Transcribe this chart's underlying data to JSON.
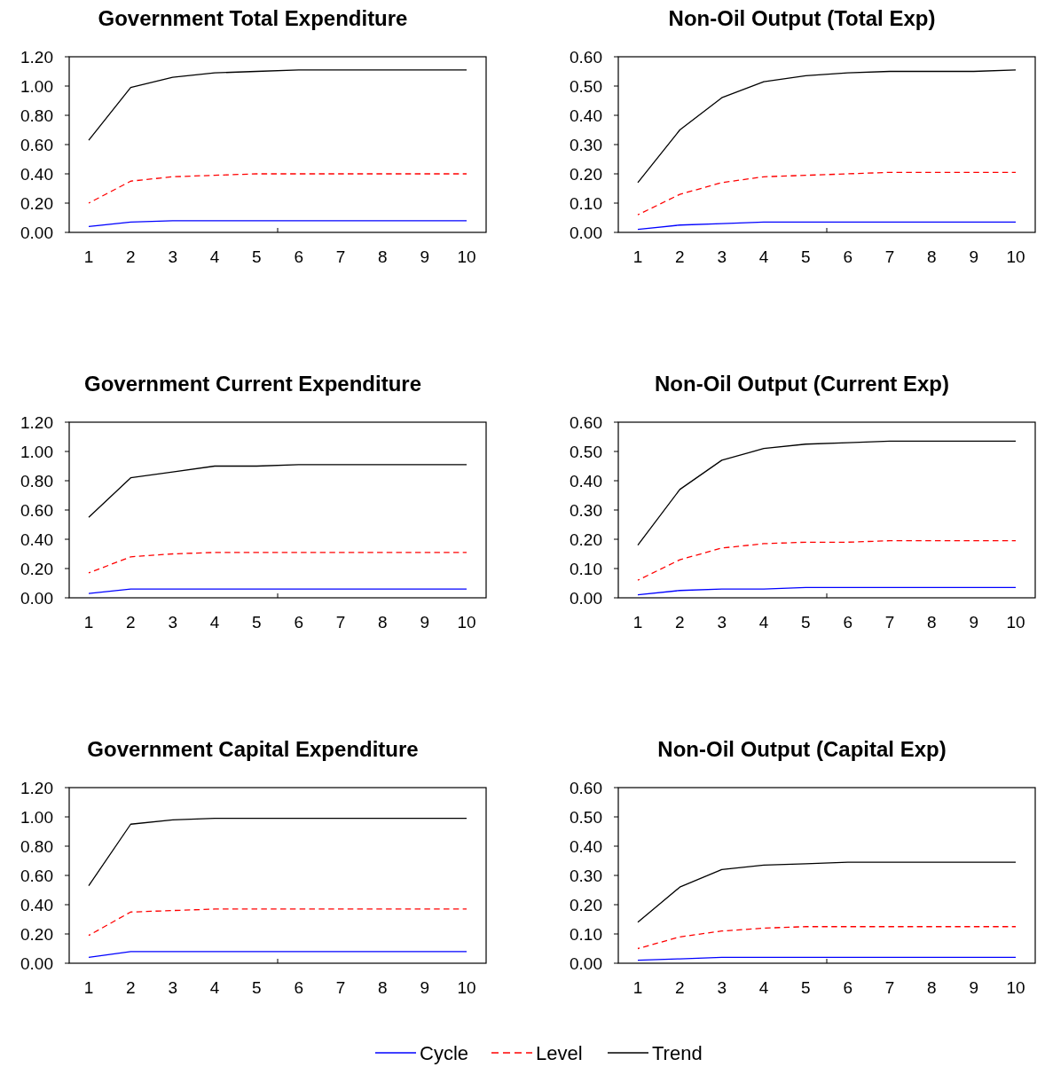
{
  "chart_data": [
    {
      "type": "line",
      "title": "Government Total Expenditure",
      "categories": [
        "1",
        "2",
        "3",
        "4",
        "5",
        "6",
        "7",
        "8",
        "9",
        "10"
      ],
      "ylim": [
        0,
        1.2
      ],
      "yticks": [
        {
          "value": 0,
          "label": "0.00"
        },
        {
          "value": 0.2,
          "label": "0.20"
        },
        {
          "value": 0.4,
          "label": "0.40"
        },
        {
          "value": 0.6,
          "label": "0.60"
        },
        {
          "value": 0.8,
          "label": "0.80"
        },
        {
          "value": 1,
          "label": "1.00"
        },
        {
          "value": 1.2,
          "label": "1.20"
        }
      ],
      "grid": false,
      "series": [
        {
          "color": "#0000ff",
          "line_style": "solid",
          "values": [
            0.04,
            0.07,
            0.08,
            0.08,
            0.08,
            0.08,
            0.08,
            0.08,
            0.08,
            0.08
          ]
        },
        {
          "color": "#ff0000",
          "line_style": "dashed",
          "values": [
            0.2,
            0.35,
            0.38,
            0.39,
            0.4,
            0.4,
            0.4,
            0.4,
            0.4,
            0.4
          ]
        },
        {
          "color": "#000000",
          "line_style": "solid",
          "values": [
            0.63,
            0.99,
            1.06,
            1.09,
            1.1,
            1.11,
            1.11,
            1.11,
            1.11,
            1.11
          ]
        }
      ]
    },
    {
      "type": "line",
      "title": "Non-Oil Output (Total Exp)",
      "categories": [
        "1",
        "2",
        "3",
        "4",
        "5",
        "6",
        "7",
        "8",
        "9",
        "10"
      ],
      "ylim": [
        0,
        0.6
      ],
      "yticks": [
        {
          "value": 0,
          "label": "0.00"
        },
        {
          "value": 0.1,
          "label": "0.10"
        },
        {
          "value": 0.2,
          "label": "0.20"
        },
        {
          "value": 0.3,
          "label": "0.30"
        },
        {
          "value": 0.4,
          "label": "0.40"
        },
        {
          "value": 0.5,
          "label": "0.50"
        },
        {
          "value": 0.6,
          "label": "0.60"
        }
      ],
      "grid": false,
      "series": [
        {
          "color": "#0000ff",
          "line_style": "solid",
          "values": [
            0.01,
            0.025,
            0.03,
            0.035,
            0.035,
            0.035,
            0.035,
            0.035,
            0.035,
            0.035
          ]
        },
        {
          "color": "#ff0000",
          "line_style": "dashed",
          "values": [
            0.06,
            0.13,
            0.17,
            0.19,
            0.195,
            0.2,
            0.205,
            0.205,
            0.205,
            0.205
          ]
        },
        {
          "color": "#000000",
          "line_style": "solid",
          "values": [
            0.17,
            0.35,
            0.46,
            0.515,
            0.535,
            0.545,
            0.55,
            0.55,
            0.55,
            0.555
          ]
        }
      ]
    },
    {
      "type": "line",
      "title": "Government Current Expenditure",
      "categories": [
        "1",
        "2",
        "3",
        "4",
        "5",
        "6",
        "7",
        "8",
        "9",
        "10"
      ],
      "ylim": [
        0,
        1.2
      ],
      "yticks": [
        {
          "value": 0,
          "label": "0.00"
        },
        {
          "value": 0.2,
          "label": "0.20"
        },
        {
          "value": 0.4,
          "label": "0.40"
        },
        {
          "value": 0.6,
          "label": "0.60"
        },
        {
          "value": 0.8,
          "label": "0.80"
        },
        {
          "value": 1,
          "label": "1.00"
        },
        {
          "value": 1.2,
          "label": "1.20"
        }
      ],
      "grid": false,
      "series": [
        {
          "color": "#0000ff",
          "line_style": "solid",
          "values": [
            0.03,
            0.06,
            0.06,
            0.06,
            0.06,
            0.06,
            0.06,
            0.06,
            0.06,
            0.06
          ]
        },
        {
          "color": "#ff0000",
          "line_style": "dashed",
          "values": [
            0.17,
            0.28,
            0.3,
            0.31,
            0.31,
            0.31,
            0.31,
            0.31,
            0.31,
            0.31
          ]
        },
        {
          "color": "#000000",
          "line_style": "solid",
          "values": [
            0.55,
            0.82,
            0.86,
            0.9,
            0.9,
            0.91,
            0.91,
            0.91,
            0.91,
            0.91
          ]
        }
      ]
    },
    {
      "type": "line",
      "title": "Non-Oil Output (Current Exp)",
      "categories": [
        "1",
        "2",
        "3",
        "4",
        "5",
        "6",
        "7",
        "8",
        "9",
        "10"
      ],
      "ylim": [
        0,
        0.6
      ],
      "yticks": [
        {
          "value": 0,
          "label": "0.00"
        },
        {
          "value": 0.1,
          "label": "0.10"
        },
        {
          "value": 0.2,
          "label": "0.20"
        },
        {
          "value": 0.3,
          "label": "0.30"
        },
        {
          "value": 0.4,
          "label": "0.40"
        },
        {
          "value": 0.5,
          "label": "0.50"
        },
        {
          "value": 0.6,
          "label": "0.60"
        }
      ],
      "grid": false,
      "series": [
        {
          "color": "#0000ff",
          "line_style": "solid",
          "values": [
            0.01,
            0.025,
            0.03,
            0.03,
            0.035,
            0.035,
            0.035,
            0.035,
            0.035,
            0.035
          ]
        },
        {
          "color": "#ff0000",
          "line_style": "dashed",
          "values": [
            0.06,
            0.13,
            0.17,
            0.185,
            0.19,
            0.19,
            0.195,
            0.195,
            0.195,
            0.195
          ]
        },
        {
          "color": "#000000",
          "line_style": "solid",
          "values": [
            0.18,
            0.37,
            0.47,
            0.51,
            0.525,
            0.53,
            0.535,
            0.535,
            0.535,
            0.535
          ]
        }
      ]
    },
    {
      "type": "line",
      "title": "Government Capital Expenditure",
      "categories": [
        "1",
        "2",
        "3",
        "4",
        "5",
        "6",
        "7",
        "8",
        "9",
        "10"
      ],
      "ylim": [
        0,
        1.2
      ],
      "yticks": [
        {
          "value": 0,
          "label": "0.00"
        },
        {
          "value": 0.2,
          "label": "0.20"
        },
        {
          "value": 0.4,
          "label": "0.40"
        },
        {
          "value": 0.6,
          "label": "0.60"
        },
        {
          "value": 0.8,
          "label": "0.80"
        },
        {
          "value": 1,
          "label": "1.00"
        },
        {
          "value": 1.2,
          "label": "1.20"
        }
      ],
      "grid": false,
      "series": [
        {
          "color": "#0000ff",
          "line_style": "solid",
          "values": [
            0.04,
            0.08,
            0.08,
            0.08,
            0.08,
            0.08,
            0.08,
            0.08,
            0.08,
            0.08
          ]
        },
        {
          "color": "#ff0000",
          "line_style": "dashed",
          "values": [
            0.19,
            0.35,
            0.36,
            0.37,
            0.37,
            0.37,
            0.37,
            0.37,
            0.37,
            0.37
          ]
        },
        {
          "color": "#000000",
          "line_style": "solid",
          "values": [
            0.53,
            0.95,
            0.98,
            0.99,
            0.99,
            0.99,
            0.99,
            0.99,
            0.99,
            0.99
          ]
        }
      ]
    },
    {
      "type": "line",
      "title": "Non-Oil Output (Capital Exp)",
      "categories": [
        "1",
        "2",
        "3",
        "4",
        "5",
        "6",
        "7",
        "8",
        "9",
        "10"
      ],
      "ylim": [
        0,
        0.6
      ],
      "yticks": [
        {
          "value": 0,
          "label": "0.00"
        },
        {
          "value": 0.1,
          "label": "0.10"
        },
        {
          "value": 0.2,
          "label": "0.20"
        },
        {
          "value": 0.3,
          "label": "0.30"
        },
        {
          "value": 0.4,
          "label": "0.40"
        },
        {
          "value": 0.5,
          "label": "0.50"
        },
        {
          "value": 0.6,
          "label": "0.60"
        }
      ],
      "grid": false,
      "legend": "bottom",
      "series": [
        {
          "name": "Cycle",
          "color": "#0000ff",
          "line_style": "solid",
          "values": [
            0.01,
            0.015,
            0.02,
            0.02,
            0.02,
            0.02,
            0.02,
            0.02,
            0.02,
            0.02
          ]
        },
        {
          "name": "Level",
          "color": "#ff0000",
          "line_style": "dashed",
          "values": [
            0.05,
            0.09,
            0.11,
            0.12,
            0.125,
            0.125,
            0.125,
            0.125,
            0.125,
            0.125
          ]
        },
        {
          "name": "Trend",
          "color": "#000000",
          "line_style": "solid",
          "values": [
            0.14,
            0.26,
            0.32,
            0.335,
            0.34,
            0.345,
            0.345,
            0.345,
            0.345,
            0.345
          ]
        }
      ]
    }
  ]
}
